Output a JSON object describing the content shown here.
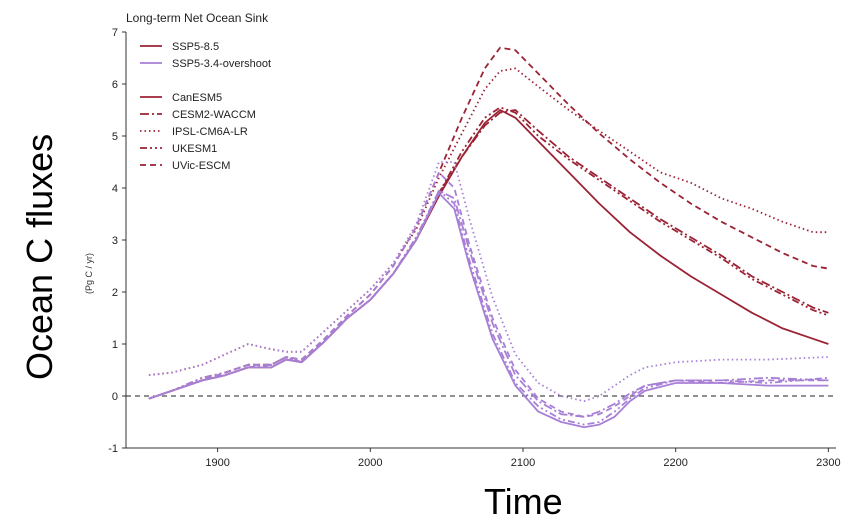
{
  "chart_data": {
    "type": "line",
    "title": "Long-term Net Ocean Sink",
    "ylabel": "Ocean C fluxes",
    "ylabel_units": "(Pg C / yr)",
    "xlabel": "Time",
    "xlim": [
      1840,
      2305
    ],
    "ylim": [
      -1,
      7
    ],
    "x_ticks": [
      1900,
      2000,
      2100,
      2200,
      2300
    ],
    "y_ticks": [
      -1,
      0,
      1,
      2,
      3,
      4,
      5,
      6,
      7
    ],
    "grid": false,
    "legend_position": "top-left",
    "reference_line": {
      "y": 0,
      "style": "dashed"
    },
    "scenario_legend": [
      {
        "name": "SSP5-8.5",
        "color": "#9b2335"
      },
      {
        "name": "SSP5-3.4-overshoot",
        "color": "#a77fd6"
      }
    ],
    "model_legend": [
      {
        "name": "CanESM5",
        "style": "solid"
      },
      {
        "name": "CESM2-WACCM",
        "style": "dashdot"
      },
      {
        "name": "IPSL-CM6A-LR",
        "style": "dotted"
      },
      {
        "name": "UKESM1",
        "style": "dashdotdot"
      },
      {
        "name": "UVic-ESCM",
        "style": "dashed"
      }
    ],
    "series": [
      {
        "scenario": "SSP5-8.5",
        "model": "CanESM5",
        "x": [
          1855,
          1870,
          1890,
          1905,
          1920,
          1935,
          1945,
          1955,
          1970,
          1985,
          2000,
          2015,
          2030,
          2045,
          2060,
          2075,
          2085,
          2095,
          2110,
          2130,
          2150,
          2170,
          2190,
          2210,
          2230,
          2250,
          2270,
          2290,
          2300
        ],
        "y": [
          -0.05,
          0.1,
          0.3,
          0.4,
          0.55,
          0.55,
          0.7,
          0.65,
          1.05,
          1.5,
          1.85,
          2.35,
          3.0,
          3.85,
          4.6,
          5.25,
          5.5,
          5.35,
          4.9,
          4.3,
          3.7,
          3.15,
          2.7,
          2.3,
          1.95,
          1.6,
          1.3,
          1.1,
          1.0
        ]
      },
      {
        "scenario": "SSP5-8.5",
        "model": "CESM2-WACCM",
        "x": [
          1855,
          1870,
          1890,
          1905,
          1920,
          1935,
          1945,
          1955,
          1970,
          1985,
          2000,
          2015,
          2030,
          2045,
          2060,
          2075,
          2085,
          2095,
          2110,
          2130,
          2150,
          2170,
          2190,
          2210,
          2230,
          2250,
          2270,
          2290,
          2300
        ],
        "y": [
          -0.05,
          0.1,
          0.3,
          0.4,
          0.55,
          0.6,
          0.75,
          0.65,
          1.05,
          1.5,
          1.85,
          2.35,
          3.0,
          3.9,
          4.6,
          5.2,
          5.45,
          5.5,
          5.1,
          4.6,
          4.2,
          3.8,
          3.4,
          3.05,
          2.7,
          2.3,
          2.0,
          1.7,
          1.6
        ]
      },
      {
        "scenario": "SSP5-8.5",
        "model": "IPSL-CM6A-LR",
        "x": [
          1855,
          1870,
          1890,
          1905,
          1920,
          1935,
          1945,
          1955,
          1970,
          1985,
          2000,
          2015,
          2030,
          2045,
          2060,
          2075,
          2085,
          2095,
          2110,
          2130,
          2150,
          2170,
          2190,
          2210,
          2230,
          2250,
          2270,
          2290,
          2300
        ],
        "y": [
          0.4,
          0.45,
          0.6,
          0.8,
          1.0,
          0.9,
          0.85,
          0.85,
          1.25,
          1.65,
          2.05,
          2.55,
          3.2,
          4.2,
          5.05,
          5.9,
          6.25,
          6.3,
          5.95,
          5.5,
          5.1,
          4.7,
          4.3,
          4.1,
          3.8,
          3.6,
          3.35,
          3.15,
          3.15
        ]
      },
      {
        "scenario": "SSP5-8.5",
        "model": "UKESM1",
        "x": [
          1855,
          1870,
          1890,
          1905,
          1920,
          1935,
          1945,
          1955,
          1970,
          1985,
          2000,
          2015,
          2030,
          2045,
          2060,
          2075,
          2085,
          2095,
          2110,
          2130,
          2150,
          2170,
          2190,
          2210,
          2230,
          2250,
          2270,
          2290,
          2300
        ],
        "y": [
          -0.05,
          0.1,
          0.35,
          0.45,
          0.6,
          0.6,
          0.75,
          0.65,
          1.05,
          1.5,
          1.85,
          2.35,
          3.05,
          3.9,
          4.7,
          5.35,
          5.55,
          5.45,
          5.0,
          4.55,
          4.15,
          3.75,
          3.35,
          3.0,
          2.65,
          2.25,
          1.95,
          1.65,
          1.55
        ]
      },
      {
        "scenario": "SSP5-8.5",
        "model": "UVic-ESCM",
        "x": [
          1855,
          1870,
          1890,
          1905,
          1920,
          1935,
          1945,
          1955,
          1970,
          1985,
          2000,
          2015,
          2030,
          2045,
          2060,
          2075,
          2085,
          2095,
          2110,
          2130,
          2150,
          2170,
          2190,
          2210,
          2230,
          2250,
          2270,
          2290,
          2300
        ],
        "y": [
          -0.05,
          0.1,
          0.3,
          0.45,
          0.6,
          0.6,
          0.75,
          0.7,
          1.1,
          1.55,
          1.95,
          2.5,
          3.25,
          4.3,
          5.35,
          6.3,
          6.7,
          6.65,
          6.2,
          5.6,
          5.05,
          4.55,
          4.1,
          3.7,
          3.35,
          3.05,
          2.75,
          2.5,
          2.45
        ]
      },
      {
        "scenario": "SSP5-3.4-overshoot",
        "model": "CanESM5",
        "x": [
          1855,
          1870,
          1890,
          1905,
          1920,
          1935,
          1945,
          1955,
          1970,
          1985,
          2000,
          2015,
          2030,
          2045,
          2055,
          2065,
          2080,
          2095,
          2110,
          2125,
          2140,
          2150,
          2160,
          2170,
          2180,
          2200,
          2230,
          2260,
          2300
        ],
        "y": [
          -0.05,
          0.1,
          0.3,
          0.4,
          0.55,
          0.55,
          0.7,
          0.65,
          1.05,
          1.5,
          1.85,
          2.35,
          3.0,
          3.9,
          3.6,
          2.5,
          1.1,
          0.2,
          -0.3,
          -0.5,
          -0.6,
          -0.55,
          -0.4,
          -0.1,
          0.1,
          0.25,
          0.25,
          0.2,
          0.2
        ]
      },
      {
        "scenario": "SSP5-3.4-overshoot",
        "model": "CESM2-WACCM",
        "x": [
          1855,
          1870,
          1890,
          1905,
          1920,
          1935,
          1945,
          1955,
          1970,
          1985,
          2000,
          2015,
          2030,
          2045,
          2055,
          2065,
          2080,
          2095,
          2110,
          2125,
          2140,
          2150,
          2160,
          2170,
          2180,
          2200,
          2230,
          2260,
          2300
        ],
        "y": [
          -0.05,
          0.1,
          0.3,
          0.4,
          0.55,
          0.6,
          0.75,
          0.65,
          1.05,
          1.5,
          1.85,
          2.35,
          3.0,
          3.95,
          3.8,
          2.8,
          1.4,
          0.4,
          -0.1,
          -0.35,
          -0.4,
          -0.3,
          -0.15,
          0.05,
          0.2,
          0.3,
          0.3,
          0.35,
          0.3
        ]
      },
      {
        "scenario": "SSP5-3.4-overshoot",
        "model": "IPSL-CM6A-LR",
        "x": [
          1855,
          1870,
          1890,
          1905,
          1920,
          1935,
          1945,
          1955,
          1970,
          1985,
          2000,
          2015,
          2030,
          2045,
          2055,
          2065,
          2080,
          2095,
          2110,
          2125,
          2140,
          2150,
          2160,
          2170,
          2180,
          2200,
          2230,
          2260,
          2300
        ],
        "y": [
          0.4,
          0.45,
          0.6,
          0.8,
          1.0,
          0.9,
          0.85,
          0.85,
          1.25,
          1.65,
          2.05,
          2.55,
          3.3,
          4.5,
          4.5,
          3.4,
          1.9,
          0.8,
          0.25,
          0.0,
          -0.1,
          0.0,
          0.2,
          0.4,
          0.55,
          0.65,
          0.7,
          0.7,
          0.75
        ]
      },
      {
        "scenario": "SSP5-3.4-overshoot",
        "model": "UKESM1",
        "x": [
          1855,
          1870,
          1890,
          1905,
          1920,
          1935,
          1945,
          1955,
          1970,
          1985,
          2000,
          2015,
          2030,
          2045,
          2055,
          2065,
          2080,
          2095,
          2110,
          2125,
          2140,
          2150,
          2160,
          2170,
          2180,
          2200,
          2230,
          2260,
          2300
        ],
        "y": [
          -0.05,
          0.1,
          0.35,
          0.45,
          0.6,
          0.6,
          0.75,
          0.65,
          1.05,
          1.5,
          1.85,
          2.35,
          3.05,
          3.95,
          3.7,
          2.6,
          1.2,
          0.25,
          -0.2,
          -0.45,
          -0.55,
          -0.5,
          -0.3,
          -0.05,
          0.15,
          0.3,
          0.3,
          0.25,
          0.35
        ]
      },
      {
        "scenario": "SSP5-3.4-overshoot",
        "model": "UVic-ESCM",
        "x": [
          1855,
          1870,
          1890,
          1905,
          1920,
          1935,
          1945,
          1955,
          1970,
          1985,
          2000,
          2015,
          2030,
          2045,
          2055,
          2065,
          2080,
          2095,
          2110,
          2125,
          2140,
          2150,
          2160,
          2170,
          2180,
          2200,
          2230,
          2260,
          2300
        ],
        "y": [
          -0.05,
          0.1,
          0.3,
          0.45,
          0.6,
          0.6,
          0.75,
          0.7,
          1.1,
          1.55,
          1.95,
          2.5,
          3.25,
          4.3,
          4.0,
          2.9,
          1.5,
          0.5,
          -0.05,
          -0.3,
          -0.4,
          -0.35,
          -0.2,
          0.0,
          0.2,
          0.3,
          0.25,
          0.3,
          0.3
        ]
      }
    ]
  }
}
